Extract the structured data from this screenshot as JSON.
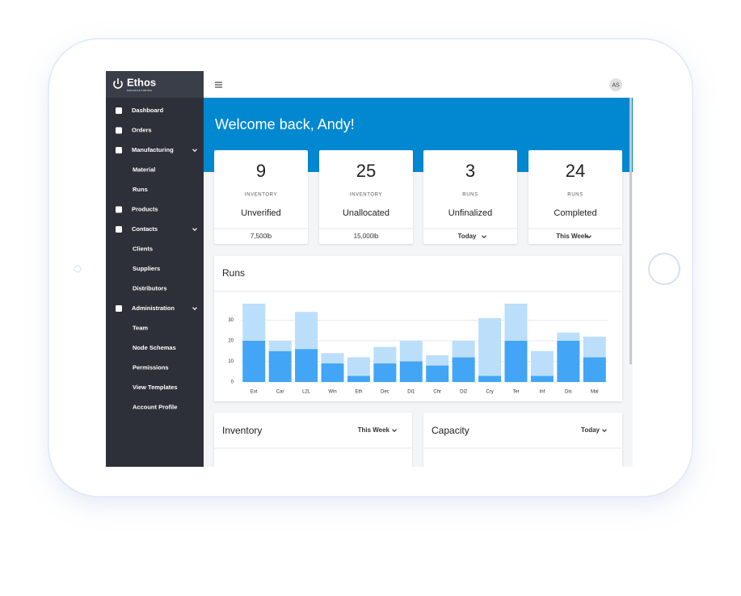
{
  "sidebar": {
    "brand": "Ethos",
    "brand_sub": "MANUFACTURING",
    "items": [
      {
        "label": "Dashboard"
      },
      {
        "label": "Orders"
      },
      {
        "label": "Manufacturing",
        "children": [
          "Material",
          "Runs"
        ]
      },
      {
        "label": "Products"
      },
      {
        "label": "Contacts",
        "children": [
          "Clients",
          "Suppliers",
          "Distributors"
        ]
      },
      {
        "label": "Administration",
        "children": [
          "Team",
          "Node Schemas",
          "Permissions",
          "View Templates",
          "Account Profile"
        ]
      }
    ]
  },
  "header": {
    "avatar": "AS"
  },
  "welcome": "Welcome back, Andy!",
  "cards": [
    {
      "value": 9,
      "category": "INVENTORY",
      "label": "Unverified",
      "footer": "7,500lb"
    },
    {
      "value": 25,
      "category": "INVENTORY",
      "label": "Unallocated",
      "footer": "15,000lb"
    },
    {
      "value": 3,
      "category": "RUNS",
      "label": "Unfinalized",
      "filter": "Today"
    },
    {
      "value": 24,
      "category": "RUNS",
      "label": "Completed",
      "filter": "This Week"
    }
  ],
  "chart_data": {
    "type": "bar",
    "stacked": true,
    "title": "Runs",
    "categories": [
      "Ext",
      "Car",
      "L2L",
      "Win",
      "Eth",
      "Dec",
      "Dl1",
      "Chr",
      "Dl2",
      "Cry",
      "Ter",
      "Inf",
      "Dis",
      "Mal"
    ],
    "series": [
      {
        "color": "#42a5f5",
        "values": [
          20,
          15,
          16,
          9,
          3,
          9,
          10,
          8,
          12,
          3,
          20,
          3,
          20,
          12
        ]
      },
      {
        "color": "#bbdefb",
        "values": [
          18,
          5,
          18,
          5,
          9,
          8,
          10,
          5,
          8,
          28,
          18,
          12,
          4,
          10
        ]
      }
    ],
    "ylim": [
      0,
      38
    ],
    "yticks": [
      0,
      10,
      20,
      30
    ],
    "grid": true
  },
  "panels": [
    {
      "title": "Inventory",
      "filter": "This Week"
    },
    {
      "title": "Capacity",
      "filter": "Today"
    }
  ]
}
